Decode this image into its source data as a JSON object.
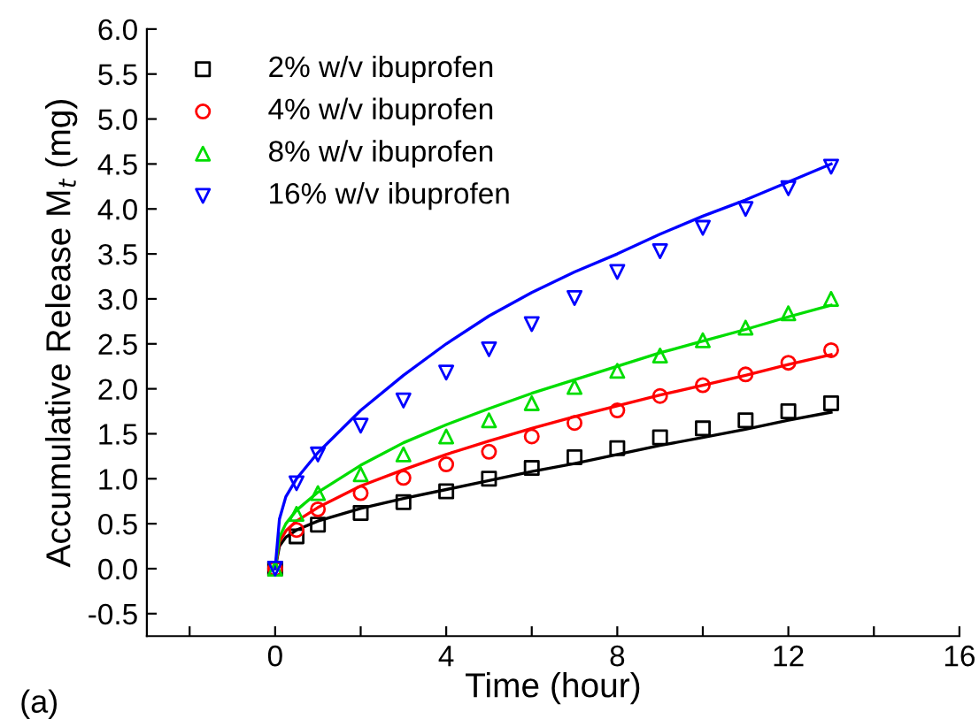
{
  "chart_data": {
    "type": "scatter",
    "xlabel": "Time (hour)",
    "ylabel": "Accumulative Release M$_{t}$ (mg)",
    "annotations": [
      "(a)"
    ],
    "xlim": [
      -3,
      16
    ],
    "ylim": [
      -0.75,
      6.0
    ],
    "xticks": [
      {
        "value": -2,
        "label": null
      },
      0,
      {
        "value": 2,
        "label": null
      },
      4,
      {
        "value": 6,
        "label": null
      },
      8,
      {
        "value": 10,
        "label": null
      },
      12,
      {
        "value": 14,
        "label": null
      },
      16
    ],
    "yticks": [
      {
        "value": -0.5,
        "label": "-0.5"
      },
      {
        "value": 0,
        "label": "0.0"
      },
      {
        "value": 0.5,
        "label": "0.5"
      },
      {
        "value": 1,
        "label": "1.0"
      },
      {
        "value": 1.5,
        "label": "1.5"
      },
      {
        "value": 2,
        "label": "2.0"
      },
      {
        "value": 2.5,
        "label": "2.5"
      },
      {
        "value": 3,
        "label": "3.0"
      },
      {
        "value": 3.5,
        "label": "3.5"
      },
      {
        "value": 4,
        "label": "4.0"
      },
      {
        "value": 4.5,
        "label": "4.5"
      },
      {
        "value": 5,
        "label": "5.0"
      },
      {
        "value": 5.5,
        "label": "5.5"
      },
      {
        "value": 6,
        "label": "6.0"
      }
    ],
    "grid": false,
    "legend": "top left",
    "x": [
      0,
      0.5,
      1,
      2,
      3,
      4,
      5,
      6,
      7,
      8,
      9,
      10,
      11,
      12,
      13
    ],
    "series": [
      {
        "name": "2% w/v ibuprofen",
        "color": "#000000",
        "marker": "square",
        "values": [
          0,
          0.36,
          0.49,
          0.62,
          0.74,
          0.86,
          1.0,
          1.12,
          1.24,
          1.34,
          1.46,
          1.56,
          1.65,
          1.75,
          1.84
        ]
      },
      {
        "name": "4% w/v ibuprofen",
        "color": "#ff0000",
        "marker": "circle",
        "values": [
          0,
          0.43,
          0.66,
          0.84,
          1.01,
          1.16,
          1.3,
          1.47,
          1.62,
          1.76,
          1.92,
          2.04,
          2.16,
          2.29,
          2.43
        ]
      },
      {
        "name": "8% w/v ibuprofen",
        "color": "#00dd00",
        "marker": "triangle",
        "values": [
          0,
          0.61,
          0.84,
          1.05,
          1.27,
          1.47,
          1.65,
          1.84,
          2.02,
          2.2,
          2.37,
          2.54,
          2.68,
          2.84,
          3.0
        ]
      },
      {
        "name": "16% w/v ibuprofen",
        "color": "#0000ff",
        "marker": "triangle_down",
        "values": [
          0,
          0.95,
          1.27,
          1.59,
          1.87,
          2.18,
          2.44,
          2.72,
          3.01,
          3.3,
          3.53,
          3.79,
          4.0,
          4.23,
          4.47
        ]
      },
      {
        "type": "line",
        "color": "#000000",
        "x": [
          0,
          0.1,
          0.25,
          0.5,
          1,
          2,
          3,
          4,
          5,
          6,
          7,
          8,
          9,
          10,
          11,
          12,
          13
        ],
        "values": [
          0,
          0.25,
          0.35,
          0.43,
          0.53,
          0.67,
          0.78,
          0.88,
          0.98,
          1.08,
          1.17,
          1.27,
          1.37,
          1.46,
          1.55,
          1.65,
          1.74
        ]
      },
      {
        "type": "line",
        "color": "#ff0000",
        "x": [
          0,
          0.1,
          0.25,
          0.5,
          1,
          2,
          3,
          4,
          5,
          6,
          7,
          8,
          9,
          10,
          11,
          12,
          13
        ],
        "values": [
          0,
          0.3,
          0.42,
          0.53,
          0.68,
          0.92,
          1.1,
          1.27,
          1.42,
          1.56,
          1.69,
          1.81,
          1.93,
          2.04,
          2.15,
          2.27,
          2.38
        ]
      },
      {
        "type": "line",
        "color": "#00dd00",
        "x": [
          0,
          0.1,
          0.25,
          0.5,
          1,
          2,
          3,
          4,
          5,
          6,
          7,
          8,
          9,
          10,
          11,
          12,
          13
        ],
        "values": [
          0,
          0.35,
          0.5,
          0.65,
          0.85,
          1.15,
          1.4,
          1.6,
          1.78,
          1.95,
          2.1,
          2.25,
          2.4,
          2.53,
          2.66,
          2.8,
          2.93
        ]
      },
      {
        "type": "line",
        "color": "#0000ff",
        "x": [
          0,
          0.1,
          0.25,
          0.5,
          1,
          2,
          3,
          4,
          5,
          6,
          7,
          8,
          9,
          10,
          11,
          12,
          13
        ],
        "values": [
          0,
          0.55,
          0.8,
          1.0,
          1.29,
          1.76,
          2.15,
          2.5,
          2.81,
          3.07,
          3.3,
          3.5,
          3.72,
          3.92,
          4.1,
          4.3,
          4.5
        ]
      }
    ]
  }
}
